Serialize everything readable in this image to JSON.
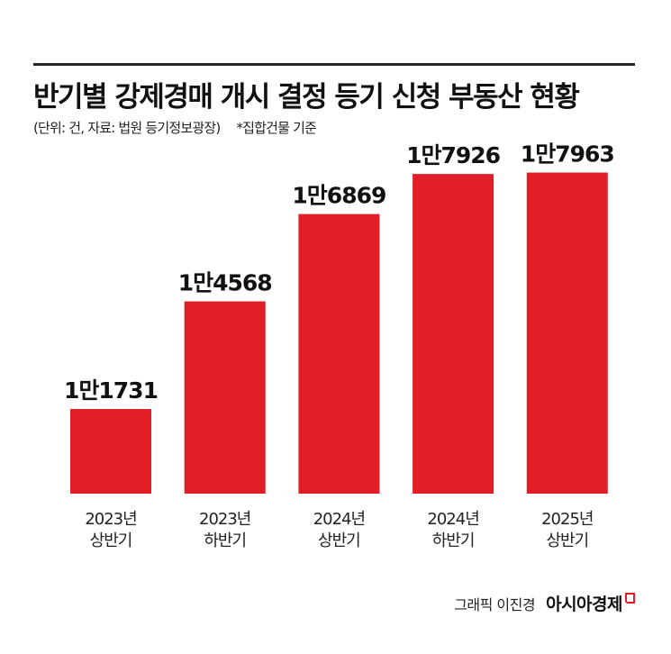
{
  "header": {
    "title": "반기별 강제경매 개시 결정 등기 신청 부동산 현황",
    "subtitle": "(단위: 건, 자료: 법원 등기정보광장)",
    "note": "*집합건물 기준"
  },
  "chart_data": {
    "type": "bar",
    "title": "반기별 강제경매 개시 결정 등기 신청 부동산 현황",
    "categories": [
      [
        "2023년",
        "상반기"
      ],
      [
        "2023년",
        "하반기"
      ],
      [
        "2024년",
        "상반기"
      ],
      [
        "2024년",
        "하반기"
      ],
      [
        "2025년",
        "상반기"
      ]
    ],
    "values": [
      11731,
      14568,
      16869,
      17926,
      17963
    ],
    "data_labels": [
      "1만1731",
      "1만4568",
      "1만6869",
      "1만7926",
      "1만7963"
    ],
    "ylim": [
      9500,
      18000
    ],
    "grid": false,
    "bar_color": "#e11d26",
    "xlabel": "",
    "ylabel": ""
  },
  "footer": {
    "credit": "그래픽 이진경",
    "logo": "아시아경제"
  }
}
